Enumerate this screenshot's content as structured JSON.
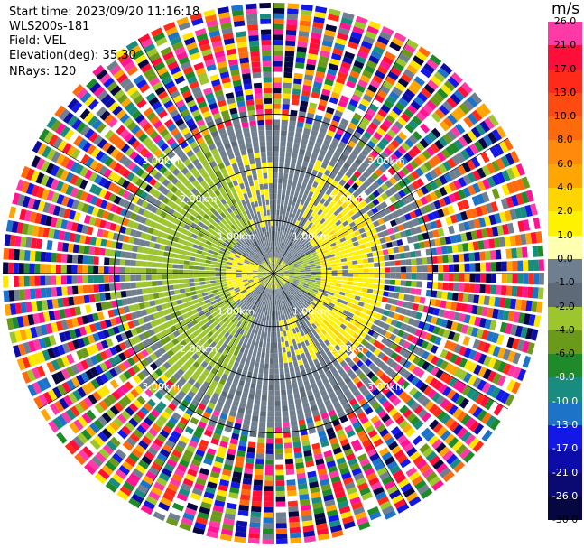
{
  "header": {
    "start_time": "Start time: 2023/09/20 11:16:18",
    "instrument": "WLS200s-181",
    "field": "Field: VEL",
    "elevation": "Elevation(deg): 35.30",
    "nrays": "NRays: 120"
  },
  "colorbar": {
    "unit": "m/s",
    "labels": [
      "26.0",
      "21.0",
      "17.0",
      "13.0",
      "10.0",
      "8.0",
      "6.0",
      "4.0",
      "2.0",
      "1.0",
      "0.0",
      "-1.0",
      "-2.0",
      "-4.0",
      "-6.0",
      "-8.0",
      "-10.0",
      "-13.0",
      "-17.0",
      "-21.0",
      "-26.0",
      "-30.0"
    ],
    "colors": [
      "#ff3aa7",
      "#ff0e3a",
      "#ff2a1a",
      "#ff4a12",
      "#ff6a0c",
      "#ff8a0c",
      "#ffa604",
      "#ffd500",
      "#fff200",
      "#ffffb0",
      "#6f7f8f",
      "#5e6a78",
      "#9dc52e",
      "#6b9a1a",
      "#1e8a2a",
      "#198c80",
      "#1d73c8",
      "#1418e6",
      "#0c0ca8",
      "#0a0a72",
      "#060640",
      "#ffffff"
    ]
  },
  "chart_data": {
    "type": "heatmap",
    "projection": "polar PPI",
    "field": "VEL",
    "units": "m/s",
    "nrays": 120,
    "azimuth_range_deg": [
      0,
      360
    ],
    "range_rings": [
      {
        "label": "1.00km",
        "range_km": 1.0
      },
      {
        "label": "2.00km",
        "range_km": 2.0
      },
      {
        "label": "3.00km",
        "range_km": 3.0
      }
    ],
    "max_range_km": 5.1,
    "value_range": [
      -30,
      26
    ],
    "regions": [
      {
        "description": "near-zero (gray) core",
        "range_km": [
          0,
          1.2
        ],
        "value": 0.0
      },
      {
        "description": "west sector approaching flow",
        "azimuth_deg": [
          220,
          320
        ],
        "range_km": [
          0.4,
          2.8
        ],
        "value": -2.0
      },
      {
        "description": "east sector receding flow",
        "azimuth_deg": [
          45,
          135
        ],
        "range_km": [
          0.4,
          2.2
        ],
        "value": 2.0
      },
      {
        "description": "noise beyond ~2.9 km",
        "range_km": [
          2.9,
          5.1
        ],
        "value": "random"
      }
    ],
    "grid": true,
    "legend": "right colorbar"
  }
}
